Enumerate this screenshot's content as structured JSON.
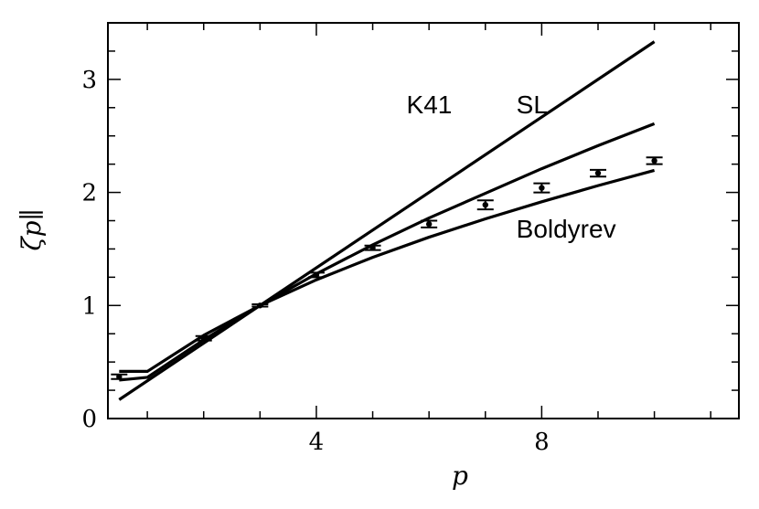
{
  "chart_data": {
    "type": "line",
    "title": "",
    "xlabel": "p",
    "ylabel": "ζp∥",
    "xlim": [
      0.3,
      11.5
    ],
    "ylim": [
      0,
      3.5
    ],
    "x_ticks": [
      4,
      8
    ],
    "y_ticks": [
      0,
      1,
      2,
      3
    ],
    "grid": false,
    "series": [
      {
        "name": "K41",
        "x": [
          0.5,
          10.0
        ],
        "y": [
          0.1667,
          3.3333
        ]
      },
      {
        "name": "SL",
        "x": [
          0.5,
          1.0,
          2.0,
          3.0,
          4.0,
          5.0,
          6.0,
          7.0,
          8.0,
          9.0,
          10.0
        ],
        "y": [
          0.34,
          0.364,
          0.696,
          1.0,
          1.28,
          1.536,
          1.774,
          1.992,
          2.21,
          2.414,
          2.608
        ]
      },
      {
        "name": "Boldyrev",
        "x": [
          0.5,
          1.0,
          2.0,
          3.0,
          4.0,
          5.0,
          6.0,
          7.0,
          8.0,
          9.0,
          10.0
        ],
        "y": [
          0.417,
          0.417,
          0.736,
          1.0,
          1.227,
          1.426,
          1.604,
          1.766,
          1.917,
          2.06,
          2.195
        ]
      }
    ],
    "measurements": {
      "x": [
        0.5,
        2,
        3,
        4,
        5,
        6,
        7,
        8,
        9,
        10
      ],
      "y": [
        0.37,
        0.71,
        1.0,
        1.27,
        1.51,
        1.72,
        1.89,
        2.04,
        2.17,
        2.28
      ],
      "err": [
        0.02,
        0.02,
        0.01,
        0.02,
        0.02,
        0.03,
        0.04,
        0.04,
        0.03,
        0.03
      ]
    },
    "annotations": [
      {
        "text": "K41",
        "x": 5.6,
        "y": 2.7
      },
      {
        "text": "SL",
        "x": 7.55,
        "y": 2.7
      },
      {
        "text": "Boldyrev",
        "x": 7.55,
        "y": 1.6
      }
    ]
  }
}
